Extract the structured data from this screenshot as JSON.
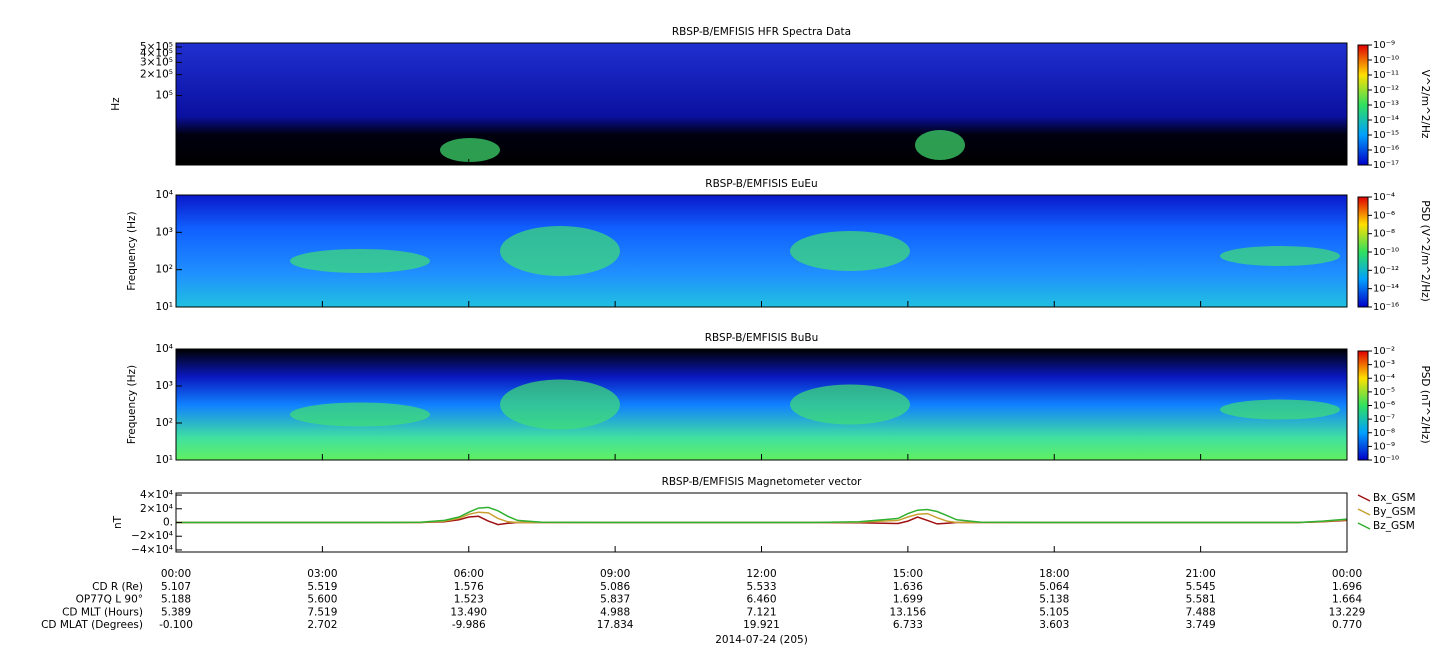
{
  "chart_data": [
    {
      "type": "spectrogram",
      "title": "RBSP-B/EMFISIS  HFR Spectra Data",
      "ylabel": "Hz",
      "ylog": true,
      "ylim": [
        10000,
        570000
      ],
      "yticks": [
        {
          "value": 100000,
          "label": "10⁵"
        },
        {
          "value": 200000,
          "label": "2×10⁵"
        },
        {
          "value": 300000,
          "label": "3×10⁵"
        },
        {
          "value": 400000,
          "label": "4×10⁵"
        },
        {
          "value": 500000,
          "label": "5×10⁵"
        }
      ],
      "colorbar": {
        "label": "V^2/m^2/Hz",
        "lim": [
          1e-17,
          1e-09
        ],
        "ticks": [
          {
            "value": 1e-17,
            "label": "10⁻¹⁷"
          },
          {
            "value": 1e-16,
            "label": "10⁻¹⁶"
          },
          {
            "value": 1e-15,
            "label": "10⁻¹⁵"
          },
          {
            "value": 1e-14,
            "label": "10⁻¹⁴"
          },
          {
            "value": 1e-13,
            "label": "10⁻¹³"
          },
          {
            "value": 1e-12,
            "label": "10⁻¹²"
          },
          {
            "value": 1e-11,
            "label": "10⁻¹¹"
          },
          {
            "value": 1e-10,
            "label": "10⁻¹⁰"
          },
          {
            "value": 1e-09,
            "label": "10⁻⁹"
          }
        ]
      }
    },
    {
      "type": "spectrogram",
      "title": "RBSP-B/EMFISIS  EuEu",
      "ylabel": "Frequency (Hz)",
      "ylog": true,
      "ylim": [
        10,
        10000
      ],
      "yticks": [
        {
          "value": 10,
          "label": "10¹"
        },
        {
          "value": 100,
          "label": "10²"
        },
        {
          "value": 1000,
          "label": "10³"
        },
        {
          "value": 10000,
          "label": "10⁴"
        }
      ],
      "colorbar": {
        "label": "PSD (V^2/m^2/Hz)",
        "lim": [
          1e-16,
          0.0001
        ],
        "ticks": [
          {
            "value": 1e-16,
            "label": "10⁻¹⁶"
          },
          {
            "value": 1e-14,
            "label": "10⁻¹⁴"
          },
          {
            "value": 1e-12,
            "label": "10⁻¹²"
          },
          {
            "value": 1e-10,
            "label": "10⁻¹⁰"
          },
          {
            "value": 1e-08,
            "label": "10⁻⁸"
          },
          {
            "value": 1e-06,
            "label": "10⁻⁶"
          },
          {
            "value": 0.0001,
            "label": "10⁻⁴"
          }
        ]
      }
    },
    {
      "type": "spectrogram",
      "title": "RBSP-B/EMFISIS  BuBu",
      "ylabel": "Frequency (Hz)",
      "ylog": true,
      "ylim": [
        10,
        10000
      ],
      "yticks": [
        {
          "value": 10,
          "label": "10¹"
        },
        {
          "value": 100,
          "label": "10²"
        },
        {
          "value": 1000,
          "label": "10³"
        },
        {
          "value": 10000,
          "label": "10⁴"
        }
      ],
      "colorbar": {
        "label": "PSD (nT^2/Hz)",
        "lim": [
          1e-10,
          0.01
        ],
        "ticks": [
          {
            "value": 1e-10,
            "label": "10⁻¹⁰"
          },
          {
            "value": 1e-09,
            "label": "10⁻⁹"
          },
          {
            "value": 1e-08,
            "label": "10⁻⁸"
          },
          {
            "value": 1e-07,
            "label": "10⁻⁷"
          },
          {
            "value": 1e-06,
            "label": "10⁻⁶"
          },
          {
            "value": 1e-05,
            "label": "10⁻⁵"
          },
          {
            "value": 0.0001,
            "label": "10⁻⁴"
          },
          {
            "value": 0.001,
            "label": "10⁻³"
          },
          {
            "value": 0.01,
            "label": "10⁻²"
          }
        ]
      }
    },
    {
      "type": "line",
      "title": "RBSP-B/EMFISIS  Magnetometer vector",
      "ylabel": "nT",
      "ylim": [
        -43000,
        43000
      ],
      "yticks": [
        {
          "value": -40000,
          "label": "−4×10⁴"
        },
        {
          "value": -20000,
          "label": "−2×10⁴"
        },
        {
          "value": 0,
          "label": "0."
        },
        {
          "value": 20000,
          "label": "2×10⁴"
        },
        {
          "value": 40000,
          "label": "4×10⁴"
        }
      ],
      "x": [
        0,
        4,
        5,
        5.5,
        5.8,
        6,
        6.2,
        6.4,
        6.6,
        6.8,
        7,
        7.5,
        9,
        13,
        14,
        14.8,
        15,
        15.2,
        15.4,
        15.6,
        15.8,
        16,
        16.5,
        18,
        23,
        23.5,
        24
      ],
      "series": [
        {
          "name": "Bx_GSM",
          "color": "#a01010",
          "values": [
            0,
            0,
            0,
            1000,
            4000,
            8000,
            9000,
            2000,
            -3000,
            -1000,
            0,
            0,
            0,
            0,
            -500,
            -1500,
            2000,
            8000,
            3000,
            -2000,
            -1000,
            0,
            0,
            0,
            0,
            1000,
            3000
          ]
        },
        {
          "name": "By_GSM",
          "color": "#c8a030",
          "values": [
            0,
            0,
            0,
            2000,
            6000,
            12000,
            15000,
            14000,
            6000,
            1000,
            0,
            0,
            0,
            0,
            500,
            3000,
            8000,
            12000,
            13000,
            7000,
            2000,
            0,
            0,
            0,
            0,
            1500,
            4000
          ]
        },
        {
          "name": "Bz_GSM",
          "color": "#30b030",
          "values": [
            0,
            0,
            500,
            3000,
            8000,
            15000,
            21000,
            22000,
            17000,
            9000,
            3000,
            500,
            0,
            0,
            1000,
            6000,
            13000,
            18000,
            19000,
            16000,
            10000,
            4000,
            500,
            0,
            0,
            2000,
            5000
          ]
        }
      ]
    }
  ],
  "time_axis": {
    "xlim": [
      0,
      24
    ],
    "xticks": [
      {
        "value": 0,
        "label": "00:00"
      },
      {
        "value": 3,
        "label": "03:00"
      },
      {
        "value": 6,
        "label": "06:00"
      },
      {
        "value": 9,
        "label": "09:00"
      },
      {
        "value": 12,
        "label": "12:00"
      },
      {
        "value": 15,
        "label": "15:00"
      },
      {
        "value": 18,
        "label": "18:00"
      },
      {
        "value": 21,
        "label": "21:00"
      },
      {
        "value": 24,
        "label": "00:00"
      }
    ]
  },
  "ephemeris": [
    {
      "label": "CD R (Re)",
      "values": [
        "5.107",
        "5.519",
        "1.576",
        "5.086",
        "5.533",
        "1.636",
        "5.064",
        "5.545",
        "1.696"
      ]
    },
    {
      "label": "OP77Q L 90°",
      "values": [
        "5.188",
        "5.600",
        "1.523",
        "5.837",
        "6.460",
        "1.699",
        "5.138",
        "5.581",
        "1.664"
      ]
    },
    {
      "label": "CD MLT (Hours)",
      "values": [
        "5.389",
        "7.519",
        "13.490",
        "4.988",
        "7.121",
        "13.156",
        "5.105",
        "7.488",
        "13.229"
      ]
    },
    {
      "label": "CD MLAT (Degrees)",
      "values": [
        "-0.100",
        "2.702",
        "-9.986",
        "17.834",
        "19.921",
        "6.733",
        "3.603",
        "3.749",
        "0.770"
      ]
    }
  ],
  "date": "2014-07-24 (205)"
}
